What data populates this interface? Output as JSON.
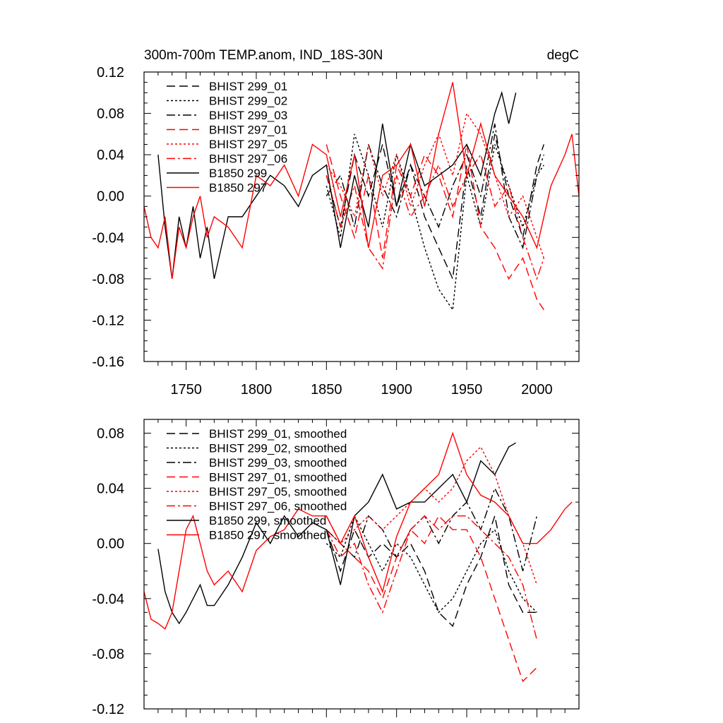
{
  "chart_data": [
    {
      "type": "line",
      "title": "300m-700m TEMP.anom, IND_18S-30N",
      "units": "degC",
      "xlabel": "",
      "ylabel": "",
      "xlim": [
        1720,
        2030
      ],
      "ylim": [
        -0.16,
        0.12
      ],
      "xticks": [
        1750,
        1800,
        1850,
        1900,
        1950,
        2000
      ],
      "xtick_labels": [
        "1750",
        "1800",
        "1850",
        "1900",
        "1950",
        "2000"
      ],
      "yticks": [
        -0.16,
        -0.12,
        -0.08,
        -0.04,
        0.0,
        0.04,
        0.08,
        0.12
      ],
      "ytick_labels": [
        "-0.16",
        "-0.12",
        "-0.08",
        "-0.04",
        "0.00",
        "0.04",
        "0.08",
        "0.12"
      ],
      "legend_position": "top-left",
      "series": [
        {
          "name": "BHIST 299_01",
          "color": "#000000",
          "dash": "long-dash",
          "x": [
            1850,
            1860,
            1870,
            1880,
            1890,
            1900,
            1910,
            1920,
            1930,
            1940,
            1950,
            1960,
            1970,
            1980,
            1990,
            2000,
            2005
          ],
          "y": [
            0.02,
            -0.03,
            0.04,
            0.0,
            0.05,
            -0.01,
            0.03,
            -0.02,
            -0.05,
            -0.08,
            0.03,
            -0.02,
            0.06,
            0.0,
            -0.04,
            0.03,
            0.05
          ]
        },
        {
          "name": "BHIST 299_02",
          "color": "#000000",
          "dash": "dot",
          "x": [
            1850,
            1860,
            1870,
            1880,
            1890,
            1900,
            1910,
            1920,
            1930,
            1940,
            1950,
            1960,
            1970,
            1980,
            1990,
            2000,
            2005
          ],
          "y": [
            0.01,
            -0.04,
            0.06,
            0.02,
            -0.03,
            0.04,
            0.0,
            -0.05,
            -0.09,
            -0.11,
            0.02,
            -0.03,
            0.05,
            0.01,
            -0.03,
            0.02,
            0.03
          ]
        },
        {
          "name": "BHIST 299_03",
          "color": "#000000",
          "dash": "dash-dot",
          "x": [
            1850,
            1860,
            1870,
            1880,
            1890,
            1900,
            1910,
            1920,
            1930,
            1940,
            1950,
            1960,
            1970,
            1980,
            1990,
            2000,
            2005
          ],
          "y": [
            0.0,
            0.02,
            -0.03,
            0.05,
            0.01,
            -0.02,
            0.03,
            0.0,
            -0.03,
            0.01,
            0.04,
            0.0,
            0.07,
            -0.02,
            -0.05,
            0.02,
            0.04
          ]
        },
        {
          "name": "BHIST 297_01",
          "color": "#ff0000",
          "dash": "long-dash",
          "x": [
            1850,
            1860,
            1870,
            1880,
            1890,
            1900,
            1910,
            1920,
            1930,
            1940,
            1950,
            1960,
            1970,
            1980,
            1990,
            2000,
            2005
          ],
          "y": [
            0.05,
            0.0,
            -0.04,
            0.02,
            -0.06,
            0.03,
            0.0,
            0.04,
            0.02,
            -0.02,
            0.05,
            -0.03,
            -0.05,
            -0.08,
            -0.06,
            -0.1,
            -0.11
          ]
        },
        {
          "name": "BHIST 297_05",
          "color": "#ff0000",
          "dash": "dot",
          "x": [
            1850,
            1860,
            1870,
            1880,
            1890,
            1900,
            1910,
            1920,
            1930,
            1940,
            1950,
            1960,
            1970,
            1980,
            1990,
            2000,
            2005
          ],
          "y": [
            0.03,
            0.01,
            -0.02,
            0.05,
            0.0,
            0.04,
            -0.01,
            0.03,
            0.06,
            0.02,
            0.08,
            0.06,
            0.02,
            -0.02,
            0.0,
            -0.04,
            -0.06
          ]
        },
        {
          "name": "BHIST 297_06",
          "color": "#ff0000",
          "dash": "dash-dot",
          "x": [
            1850,
            1860,
            1870,
            1880,
            1890,
            1900,
            1910,
            1920,
            1930,
            1940,
            1950,
            1960,
            1970,
            1980,
            1990,
            2000,
            2005
          ],
          "y": [
            0.02,
            -0.03,
            0.01,
            -0.05,
            -0.07,
            0.02,
            -0.02,
            0.0,
            0.03,
            -0.01,
            0.02,
            0.04,
            -0.01,
            0.01,
            -0.04,
            -0.08,
            -0.06
          ]
        },
        {
          "name": "B1850 299",
          "color": "#000000",
          "dash": "solid",
          "x": [
            1730,
            1735,
            1740,
            1745,
            1750,
            1755,
            1760,
            1765,
            1770,
            1780,
            1790,
            1800,
            1810,
            1820,
            1830,
            1840,
            1850,
            1860,
            1870,
            1880,
            1890,
            1900,
            1910,
            1920,
            1930,
            1940,
            1950,
            1960,
            1970,
            1975,
            1980,
            1985
          ],
          "y": [
            0.04,
            -0.03,
            -0.08,
            -0.02,
            -0.05,
            -0.01,
            -0.06,
            -0.03,
            -0.08,
            -0.02,
            -0.02,
            0.0,
            0.02,
            0.01,
            -0.01,
            0.02,
            0.03,
            -0.05,
            0.02,
            -0.03,
            0.07,
            -0.01,
            0.05,
            0.01,
            0.02,
            0.03,
            0.05,
            0.02,
            0.08,
            0.1,
            0.07,
            0.1
          ]
        },
        {
          "name": "B1850 297",
          "color": "#ff0000",
          "dash": "solid",
          "x": [
            1720,
            1725,
            1730,
            1735,
            1740,
            1745,
            1750,
            1755,
            1760,
            1765,
            1770,
            1780,
            1790,
            1800,
            1810,
            1820,
            1830,
            1840,
            1850,
            1860,
            1870,
            1880,
            1890,
            1900,
            1910,
            1920,
            1930,
            1940,
            1950,
            1960,
            1970,
            1980,
            1990,
            2000,
            2010,
            2020,
            2025,
            2030
          ],
          "y": [
            -0.01,
            -0.04,
            -0.05,
            -0.02,
            -0.08,
            -0.03,
            -0.05,
            -0.02,
            0.0,
            -0.04,
            -0.02,
            -0.03,
            -0.05,
            0.02,
            0.01,
            0.03,
            0.0,
            0.05,
            0.04,
            -0.02,
            0.04,
            -0.05,
            0.02,
            0.03,
            0.05,
            -0.01,
            0.06,
            0.11,
            0.02,
            0.07,
            0.02,
            0.0,
            -0.02,
            -0.05,
            0.01,
            0.04,
            0.06,
            0.0
          ]
        }
      ]
    },
    {
      "type": "line",
      "title": "",
      "xlabel": "",
      "ylabel": "",
      "xlim": [
        1720,
        2030
      ],
      "ylim": [
        -0.12,
        0.09
      ],
      "xticks": [
        1750,
        1800,
        1850,
        1900,
        1950,
        2000
      ],
      "yticks": [
        -0.12,
        -0.08,
        -0.04,
        0.0,
        0.04,
        0.08
      ],
      "ytick_labels": [
        "-0.12",
        "-0.08",
        "-0.04",
        "0.00",
        "0.04",
        "0.08"
      ],
      "legend_position": "top-left",
      "series": [
        {
          "name": "BHIST 299_01, smoothed",
          "color": "#000000",
          "dash": "long-dash",
          "x": [
            1850,
            1860,
            1870,
            1880,
            1890,
            1900,
            1910,
            1920,
            1930,
            1940,
            1950,
            1960,
            1970,
            1980,
            1990,
            2000
          ],
          "y": [
            0.01,
            -0.02,
            0.01,
            -0.01,
            0.0,
            -0.01,
            0.0,
            -0.02,
            -0.05,
            -0.06,
            -0.03,
            -0.01,
            0.02,
            -0.03,
            -0.05,
            -0.05
          ]
        },
        {
          "name": "BHIST 299_02, smoothed",
          "color": "#000000",
          "dash": "dot",
          "x": [
            1850,
            1860,
            1870,
            1880,
            1890,
            1900,
            1910,
            1920,
            1930,
            1940,
            1950,
            1960,
            1970,
            1980,
            1990,
            2000
          ],
          "y": [
            0.0,
            -0.01,
            0.02,
            0.0,
            -0.02,
            0.0,
            -0.01,
            -0.03,
            -0.05,
            -0.04,
            -0.02,
            0.0,
            0.01,
            -0.02,
            -0.04,
            -0.05
          ]
        },
        {
          "name": "BHIST 299_03, smoothed",
          "color": "#000000",
          "dash": "dash-dot",
          "x": [
            1850,
            1860,
            1870,
            1880,
            1890,
            1900,
            1910,
            1920,
            1930,
            1940,
            1950,
            1960,
            1970,
            1980,
            1990,
            2000
          ],
          "y": [
            0.01,
            0.0,
            -0.01,
            0.02,
            0.01,
            -0.01,
            0.01,
            0.02,
            0.0,
            0.02,
            0.03,
            0.01,
            0.04,
            0.02,
            -0.02,
            0.02
          ]
        },
        {
          "name": "BHIST 297_01, smoothed",
          "color": "#ff0000",
          "dash": "long-dash",
          "x": [
            1850,
            1860,
            1870,
            1880,
            1890,
            1900,
            1910,
            1920,
            1930,
            1940,
            1950,
            1960,
            1970,
            1980,
            1990,
            2000
          ],
          "y": [
            0.02,
            0.0,
            -0.01,
            -0.02,
            -0.04,
            -0.01,
            0.01,
            0.0,
            0.02,
            0.01,
            0.01,
            -0.01,
            -0.04,
            -0.07,
            -0.1,
            -0.09
          ]
        },
        {
          "name": "BHIST 297_05, smoothed",
          "color": "#ff0000",
          "dash": "dot",
          "x": [
            1850,
            1860,
            1870,
            1880,
            1890,
            1900,
            1910,
            1920,
            1930,
            1940,
            1950,
            1960,
            1970,
            1980,
            1990,
            2000
          ],
          "y": [
            0.01,
            0.0,
            0.01,
            0.02,
            0.01,
            0.02,
            0.03,
            0.04,
            0.03,
            0.04,
            0.06,
            0.07,
            0.05,
            0.02,
            0.0,
            -0.03
          ]
        },
        {
          "name": "BHIST 297_06, smoothed",
          "color": "#ff0000",
          "dash": "dash-dot",
          "x": [
            1850,
            1860,
            1870,
            1880,
            1890,
            1900,
            1910,
            1920,
            1930,
            1940,
            1950,
            1960,
            1970,
            1980,
            1990,
            2000
          ],
          "y": [
            0.01,
            -0.01,
            0.0,
            -0.03,
            -0.05,
            -0.02,
            0.01,
            0.02,
            0.01,
            0.02,
            0.02,
            0.01,
            0.0,
            -0.01,
            -0.03,
            -0.07
          ]
        },
        {
          "name": "B1850 299, smoothed",
          "color": "#000000",
          "dash": "solid",
          "x": [
            1730,
            1735,
            1740,
            1745,
            1750,
            1755,
            1760,
            1765,
            1770,
            1780,
            1790,
            1800,
            1810,
            1820,
            1830,
            1840,
            1850,
            1860,
            1870,
            1880,
            1890,
            1900,
            1910,
            1920,
            1930,
            1940,
            1950,
            1960,
            1970,
            1980,
            1985
          ],
          "y": [
            -0.004,
            -0.035,
            -0.05,
            -0.058,
            -0.05,
            -0.04,
            -0.03,
            -0.045,
            -0.045,
            -0.03,
            -0.01,
            0.015,
            0.0,
            0.02,
            0.005,
            0.015,
            0.01,
            -0.03,
            0.02,
            0.03,
            0.05,
            0.025,
            0.03,
            0.03,
            0.04,
            0.05,
            0.03,
            0.06,
            0.05,
            0.07,
            0.073
          ]
        },
        {
          "name": "B1850 297, smoothed",
          "color": "#ff0000",
          "dash": "solid",
          "x": [
            1720,
            1725,
            1730,
            1735,
            1740,
            1745,
            1750,
            1755,
            1760,
            1765,
            1770,
            1780,
            1790,
            1800,
            1810,
            1820,
            1830,
            1840,
            1850,
            1860,
            1870,
            1880,
            1890,
            1900,
            1910,
            1920,
            1930,
            1940,
            1950,
            1960,
            1970,
            1980,
            1990,
            2000,
            2010,
            2020,
            2025
          ],
          "y": [
            -0.035,
            -0.055,
            -0.058,
            -0.062,
            -0.05,
            -0.02,
            0.01,
            0.02,
            0.0,
            -0.02,
            -0.03,
            -0.02,
            -0.035,
            -0.005,
            0.005,
            0.01,
            0.025,
            0.02,
            0.02,
            0.0,
            0.02,
            -0.01,
            -0.035,
            0.005,
            0.03,
            0.04,
            0.05,
            0.08,
            0.05,
            0.035,
            0.03,
            0.02,
            0.0,
            0.0,
            0.01,
            0.025,
            0.03
          ]
        }
      ]
    }
  ]
}
